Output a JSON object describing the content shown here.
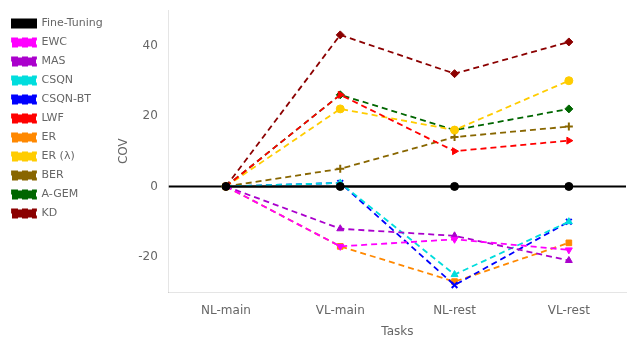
{
  "chart_data": {
    "type": "line",
    "xlabel": "Tasks",
    "ylabel": "COV",
    "categories": [
      "NL-main",
      "VL-main",
      "NL-rest",
      "VL-rest"
    ],
    "series": [
      {
        "name": "Fine-Tuning",
        "color": "#000000",
        "marker": "circle",
        "line_style": "solid",
        "values": [
          0,
          0,
          0,
          0
        ]
      },
      {
        "name": "EWC",
        "color": "#ff00ff",
        "marker": "triangle-down",
        "line_style": "dashed",
        "values": [
          0,
          -17,
          -15,
          -18
        ]
      },
      {
        "name": "MAS",
        "color": "#aa00cc",
        "marker": "triangle-up",
        "line_style": "dashed",
        "values": [
          0,
          -12,
          -14,
          -21
        ]
      },
      {
        "name": "CSQN",
        "color": "#00dddd",
        "marker": "triangle-up",
        "line_style": "dashed",
        "values": [
          0,
          1,
          -25,
          -10
        ]
      },
      {
        "name": "CSQN-BT",
        "color": "#0000ff",
        "marker": "x",
        "line_style": "dashed",
        "values": [
          0,
          1,
          -28,
          -10
        ]
      },
      {
        "name": "LWF",
        "color": "#ff0000",
        "marker": "triangle-right",
        "line_style": "dashed",
        "values": [
          0,
          26,
          10,
          13
        ]
      },
      {
        "name": "ER",
        "color": "#ff8800",
        "marker": "square",
        "line_style": "dashed",
        "values": [
          0,
          -17,
          -27,
          -16
        ]
      },
      {
        "name": "ER (λ)",
        "color": "#ffcc00",
        "marker": "circle",
        "line_style": "dashed",
        "values": [
          0,
          22,
          16,
          30
        ]
      },
      {
        "name": "BER",
        "color": "#886600",
        "marker": "plus",
        "line_style": "dashed",
        "values": [
          0,
          5,
          14,
          17
        ]
      },
      {
        "name": "A-GEM",
        "color": "#006600",
        "marker": "diamond",
        "line_style": "dashed",
        "values": [
          0,
          26,
          16,
          22
        ]
      },
      {
        "name": "KD",
        "color": "#8b0000",
        "marker": "diamond",
        "line_style": "dashed",
        "values": [
          0,
          43,
          32,
          41
        ]
      }
    ],
    "reference_lines": [
      {
        "y": 0,
        "color": "#000000"
      }
    ],
    "ylim": [
      -30,
      50
    ],
    "yticks": [
      -20,
      0,
      20,
      40
    ],
    "grid": false,
    "legend": "upper left"
  }
}
